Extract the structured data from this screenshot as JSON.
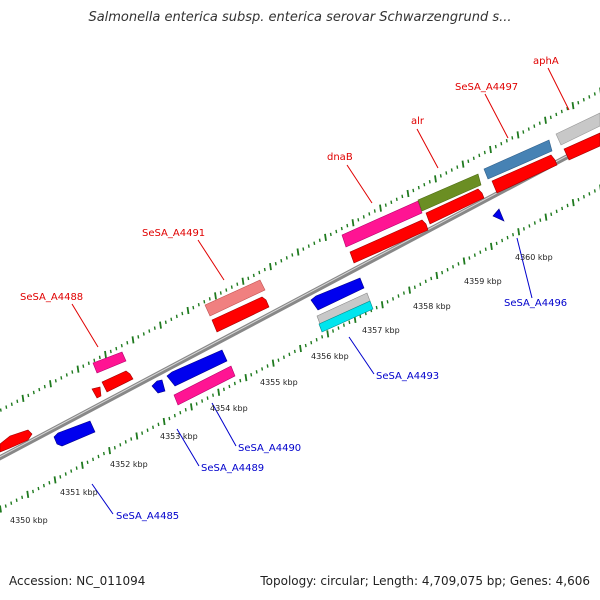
{
  "title": "Salmonella enterica subsp. enterica serovar Schwarzengrund s...",
  "footer": {
    "accession": "Accession: NC_011094",
    "stats": "Topology: circular; Length: 4,709,075 bp; Genes: 4,606"
  },
  "colors": {
    "forward_label": "#e00000",
    "reverse_label": "#0000cc",
    "ruler": "#1f7a1f",
    "backbone": "#888888"
  },
  "ticks": [
    {
      "label": "4350 kbp",
      "kbp": 4350
    },
    {
      "label": "4351 kbp",
      "kbp": 4351
    },
    {
      "label": "4352 kbp",
      "kbp": 4352
    },
    {
      "label": "4353 kbp",
      "kbp": 4353
    },
    {
      "label": "4354 kbp",
      "kbp": 4354
    },
    {
      "label": "4355 kbp",
      "kbp": 4355
    },
    {
      "label": "4356 kbp",
      "kbp": 4356
    },
    {
      "label": "4357 kbp",
      "kbp": 4357
    },
    {
      "label": "4358 kbp",
      "kbp": 4358
    },
    {
      "label": "4359 kbp",
      "kbp": 4359
    },
    {
      "label": "4360 kbp",
      "kbp": 4360
    }
  ],
  "gene_labels": [
    {
      "name": "SeSA_A4488",
      "strand": "forward"
    },
    {
      "name": "SeSA_A4491",
      "strand": "forward"
    },
    {
      "name": "dnaB",
      "strand": "forward"
    },
    {
      "name": "alr",
      "strand": "forward"
    },
    {
      "name": "SeSA_A4497",
      "strand": "forward"
    },
    {
      "name": "aphA",
      "strand": "forward"
    },
    {
      "name": "SeSA_A4485",
      "strand": "reverse"
    },
    {
      "name": "SeSA_A4489",
      "strand": "reverse"
    },
    {
      "name": "SeSA_A4490",
      "strand": "reverse"
    },
    {
      "name": "SeSA_A4493",
      "strand": "reverse"
    },
    {
      "name": "SeSA_A4496",
      "strand": "reverse"
    }
  ]
}
